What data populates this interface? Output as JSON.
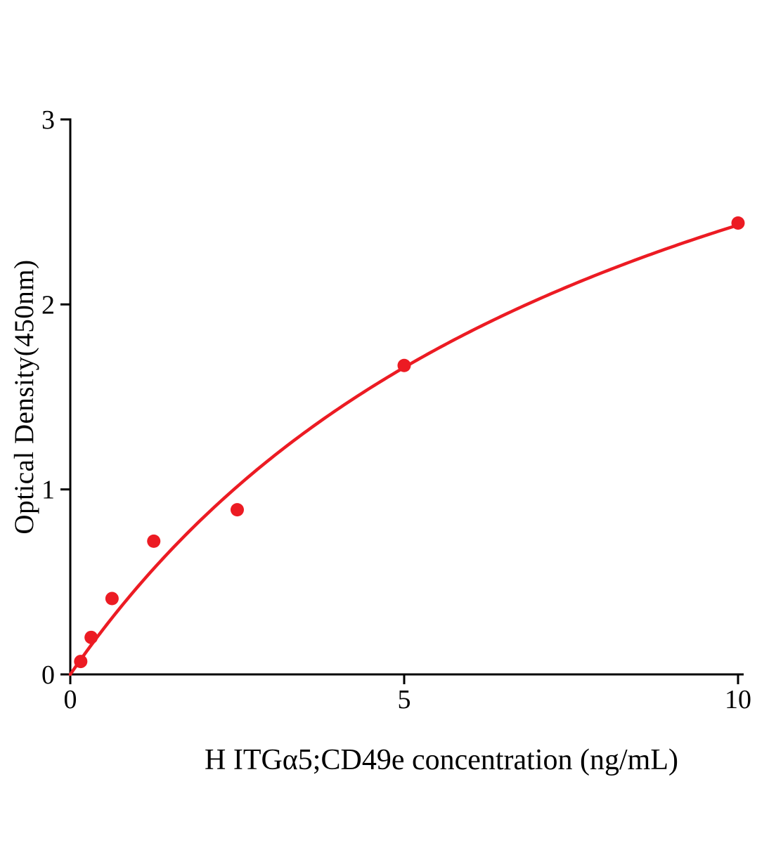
{
  "chart_data": {
    "type": "scatter",
    "title": "",
    "xlabel": "H ITGα5;CD49e concentration (ng/mL)",
    "ylabel": "Optical Density(450nm)",
    "x": [
      0.156,
      0.3125,
      0.625,
      1.25,
      2.5,
      5,
      10
    ],
    "y": [
      0.07,
      0.2,
      0.41,
      0.72,
      0.89,
      1.67,
      2.44
    ],
    "xlim": [
      0,
      10
    ],
    "ylim": [
      0,
      3
    ],
    "x_ticks": [
      0,
      5,
      10
    ],
    "x_tick_labels": [
      "0",
      "5",
      "10"
    ],
    "y_ticks": [
      0,
      1,
      2,
      3
    ],
    "y_tick_labels": [
      "0",
      "1",
      "2",
      "3"
    ],
    "grid": false,
    "legend": null,
    "point_color": "#ec1b23",
    "curve_color": "#ec1b23",
    "axis_color": "#000000",
    "curve_fit": {
      "model": "hill",
      "vmax": 4.53,
      "km": 8.65,
      "hill": 1
    }
  }
}
